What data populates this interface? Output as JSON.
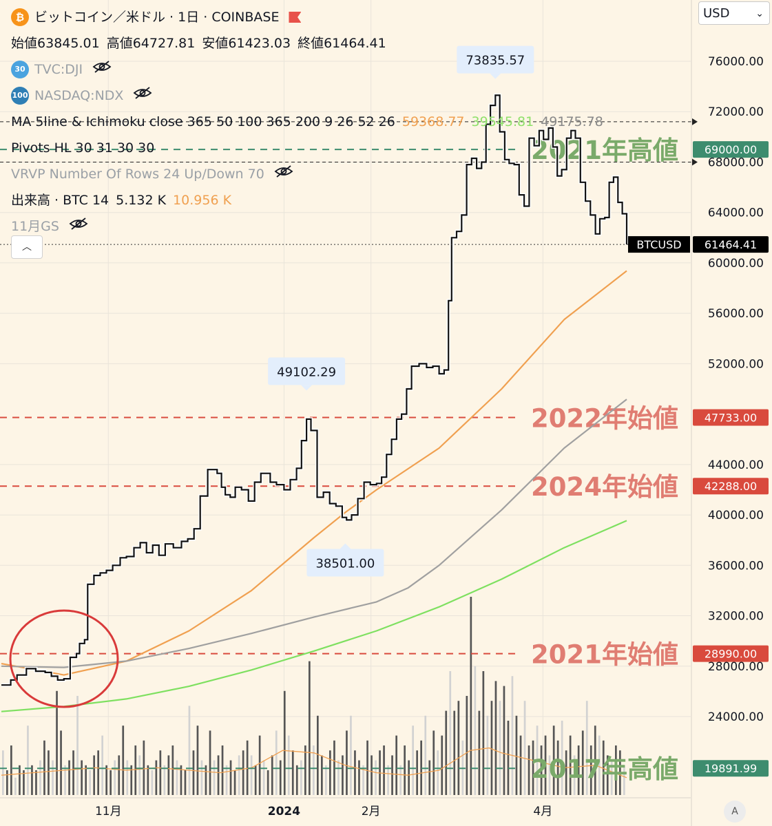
{
  "legend": {
    "title": "ビットコイン／米ドル · 1日 · COINBASE",
    "ohlc": {
      "o_label": "始値",
      "o_value": "63845.01",
      "h_label": "高値",
      "h_value": "64727.81",
      "l_label": "安値",
      "l_value": "61423.03",
      "c_label": "終値",
      "c_value": "61464.41"
    },
    "dji": {
      "badge": "30",
      "label": "TVC:DJI"
    },
    "ndx": {
      "badge": "100",
      "label": "NASDAQ:NDX"
    },
    "ma": {
      "label": "MA 5line & Ichimoku close 365 50 100 365 200 9 26 52 26",
      "v1": "59368.77",
      "v2": "39545.81",
      "v3": "49175.78"
    },
    "pivots": "Pivots HL 30 31 30 30",
    "vrvp": "VRVP Number Of Rows 24 Up/Down 70",
    "volume": {
      "label": "出来高 · BTC 14",
      "v1": "5.132 K",
      "v2": "10.956 K"
    },
    "gs": "11月GS"
  },
  "currency": "USD",
  "scale_button": "A",
  "colors": {
    "background": "#fdf5e6",
    "green_level": "#3d8c6e",
    "red_level": "#d94a3d",
    "green_label": "#7aaa6a",
    "red_label": "#e07d72",
    "ma_orange": "#f0a050",
    "ma_gray": "#a0a0a0",
    "ma_green": "#7ee060"
  },
  "chart_data": {
    "type": "line",
    "title": "ビットコイン／米ドル · 1日 · COINBASE",
    "y_axis": {
      "ylim": [
        18400,
        79000
      ],
      "ticks": [
        "76000.00",
        "72000.00",
        "68000.00",
        "64000.00",
        "60000.00",
        "56000.00",
        "52000.00",
        "44000.00",
        "40000.00",
        "36000.00",
        "32000.00",
        "28000.00",
        "24000.00"
      ]
    },
    "x_axis": {
      "ticks": [
        {
          "label": "11月",
          "t": 0.171
        },
        {
          "label": "2024",
          "t": 0.452
        },
        {
          "label": "2月",
          "t": 0.591
        },
        {
          "label": "4月",
          "t": 0.866
        }
      ]
    },
    "price_series": {
      "name": "BTCUSD",
      "points": [
        [
          0.0,
          26500
        ],
        [
          0.015,
          26900
        ],
        [
          0.025,
          27300
        ],
        [
          0.04,
          27800
        ],
        [
          0.055,
          27600
        ],
        [
          0.07,
          27500
        ],
        [
          0.08,
          27200
        ],
        [
          0.09,
          26900
        ],
        [
          0.1,
          27000
        ],
        [
          0.11,
          28700
        ],
        [
          0.12,
          29000
        ],
        [
          0.125,
          29800
        ],
        [
          0.133,
          30100
        ],
        [
          0.138,
          34500
        ],
        [
          0.148,
          35200
        ],
        [
          0.158,
          35400
        ],
        [
          0.168,
          35600
        ],
        [
          0.178,
          36000
        ],
        [
          0.19,
          36600
        ],
        [
          0.2,
          36700
        ],
        [
          0.212,
          37400
        ],
        [
          0.222,
          37800
        ],
        [
          0.232,
          37000
        ],
        [
          0.242,
          37600
        ],
        [
          0.252,
          36800
        ],
        [
          0.262,
          37700
        ],
        [
          0.275,
          37400
        ],
        [
          0.288,
          37900
        ],
        [
          0.298,
          38100
        ],
        [
          0.308,
          38900
        ],
        [
          0.318,
          41500
        ],
        [
          0.33,
          43600
        ],
        [
          0.345,
          43300
        ],
        [
          0.352,
          42200
        ],
        [
          0.358,
          41600
        ],
        [
          0.366,
          41400
        ],
        [
          0.374,
          42200
        ],
        [
          0.384,
          42000
        ],
        [
          0.395,
          41100
        ],
        [
          0.405,
          42600
        ],
        [
          0.415,
          43300
        ],
        [
          0.43,
          42600
        ],
        [
          0.44,
          42400
        ],
        [
          0.452,
          42000
        ],
        [
          0.462,
          42800
        ],
        [
          0.472,
          43700
        ],
        [
          0.48,
          45900
        ],
        [
          0.488,
          47600
        ],
        [
          0.495,
          46700
        ],
        [
          0.505,
          41400
        ],
        [
          0.515,
          41800
        ],
        [
          0.525,
          40900
        ],
        [
          0.535,
          40700
        ],
        [
          0.545,
          39800
        ],
        [
          0.552,
          39600
        ],
        [
          0.56,
          40000
        ],
        [
          0.57,
          41300
        ],
        [
          0.58,
          42600
        ],
        [
          0.59,
          42400
        ],
        [
          0.6,
          42500
        ],
        [
          0.608,
          43000
        ],
        [
          0.616,
          44800
        ],
        [
          0.624,
          46000
        ],
        [
          0.632,
          47600
        ],
        [
          0.64,
          48000
        ],
        [
          0.648,
          50000
        ],
        [
          0.656,
          51800
        ],
        [
          0.668,
          52000
        ],
        [
          0.68,
          51700
        ],
        [
          0.69,
          51800
        ],
        [
          0.7,
          51200
        ],
        [
          0.708,
          51500
        ],
        [
          0.715,
          57000
        ],
        [
          0.72,
          62000
        ],
        [
          0.728,
          62500
        ],
        [
          0.736,
          63800
        ],
        [
          0.744,
          67800
        ],
        [
          0.752,
          68300
        ],
        [
          0.76,
          67500
        ],
        [
          0.768,
          68000
        ],
        [
          0.775,
          71000
        ],
        [
          0.782,
          72500
        ],
        [
          0.79,
          73300
        ],
        [
          0.797,
          70400
        ],
        [
          0.805,
          68200
        ],
        [
          0.812,
          67900
        ],
        [
          0.82,
          67800
        ],
        [
          0.828,
          65400
        ],
        [
          0.836,
          64500
        ],
        [
          0.844,
          69900
        ],
        [
          0.852,
          69300
        ],
        [
          0.86,
          70500
        ],
        [
          0.867,
          69800
        ],
        [
          0.875,
          70700
        ],
        [
          0.882,
          69200
        ],
        [
          0.889,
          66900
        ],
        [
          0.896,
          67400
        ],
        [
          0.904,
          69900
        ],
        [
          0.911,
          70500
        ],
        [
          0.918,
          69900
        ],
        [
          0.926,
          66400
        ],
        [
          0.934,
          64900
        ],
        [
          0.942,
          63800
        ],
        [
          0.95,
          62300
        ],
        [
          0.957,
          63500
        ],
        [
          0.965,
          63600
        ],
        [
          0.972,
          66400
        ],
        [
          0.979,
          66800
        ],
        [
          0.986,
          64800
        ],
        [
          0.993,
          63900
        ],
        [
          1.0,
          61464
        ]
      ]
    },
    "ma_series": [
      {
        "name": "59368.77",
        "color": "#f0a050",
        "points": [
          [
            0,
            28200
          ],
          [
            0.1,
            27300
          ],
          [
            0.2,
            28400
          ],
          [
            0.3,
            30800
          ],
          [
            0.4,
            34000
          ],
          [
            0.5,
            38200
          ],
          [
            0.55,
            40200
          ],
          [
            0.6,
            42000
          ],
          [
            0.7,
            45300
          ],
          [
            0.8,
            50000
          ],
          [
            0.9,
            55500
          ],
          [
            1.0,
            59368
          ]
        ]
      },
      {
        "name": "",
        "color": "#a0a0a0",
        "points": [
          [
            0,
            28000
          ],
          [
            0.1,
            27900
          ],
          [
            0.2,
            28400
          ],
          [
            0.3,
            29400
          ],
          [
            0.4,
            30600
          ],
          [
            0.5,
            31900
          ],
          [
            0.6,
            33100
          ],
          [
            0.65,
            34200
          ],
          [
            0.7,
            36000
          ],
          [
            0.8,
            40400
          ],
          [
            0.9,
            45300
          ],
          [
            1.0,
            49175
          ]
        ]
      },
      {
        "name": "39545.81",
        "color": "#7ee060",
        "points": [
          [
            0,
            24400
          ],
          [
            0.1,
            24800
          ],
          [
            0.2,
            25400
          ],
          [
            0.3,
            26400
          ],
          [
            0.4,
            27700
          ],
          [
            0.5,
            29200
          ],
          [
            0.6,
            30800
          ],
          [
            0.7,
            32700
          ],
          [
            0.8,
            34900
          ],
          [
            0.9,
            37400
          ],
          [
            1.0,
            39545
          ]
        ]
      }
    ],
    "volume_heights": [
      0.9,
      0.5,
      1.0,
      0.35,
      0.6,
      0.5,
      1.4,
      0.6,
      0.5,
      0.7,
      1.1,
      0.9,
      0.7,
      2.1,
      1.3,
      0.6,
      0.7,
      0.9,
      2.0,
      0.7,
      0.6,
      0.5,
      0.8,
      0.9,
      1.2,
      0.6,
      0.5,
      0.7,
      0.8,
      1.4,
      0.7,
      0.6,
      1.0,
      0.8,
      1.1,
      0.6,
      0.5,
      0.7,
      0.9,
      0.6,
      0.8,
      1.0,
      0.7,
      0.6,
      0.5,
      1.8,
      0.9,
      1.4,
      0.7,
      0.6,
      1.3,
      0.7,
      0.8,
      1.0,
      0.6,
      0.7,
      0.5,
      0.8,
      0.9,
      1.1,
      0.8,
      0.6,
      1.2,
      0.7,
      0.5,
      0.8,
      1.3,
      0.7,
      2.1,
      1.2,
      0.9,
      0.6,
      0.7,
      1.0,
      2.7,
      1.0,
      1.6,
      0.8,
      0.6,
      0.9,
      1.1,
      0.7,
      0.8,
      1.3,
      1.6,
      0.9,
      0.7,
      0.6,
      1.1,
      0.8,
      0.7,
      0.9,
      1.0,
      0.6,
      0.8,
      1.2,
      0.6,
      1.0,
      0.7,
      1.4,
      0.9,
      1.1,
      1.6,
      0.7,
      1.3,
      0.9,
      1.2,
      1.7,
      2.5,
      1.7,
      1.9,
      1.1,
      2.0,
      4.0,
      2.6,
      1.7,
      2.5,
      1.6,
      1.9,
      2.3,
      1.9,
      2.2,
      1.5,
      2.4,
      1.6,
      1.2,
      1.9,
      1.0,
      1.1,
      1.4,
      1.0,
      1.2,
      0.8,
      1.4,
      1.1,
      1.5,
      0.9,
      1.2,
      0.8,
      1.0,
      1.3,
      1.9,
      1.0,
      1.4,
      1.2,
      1.1,
      0.8,
      0.7,
      1.0,
      0.9,
      0.6
    ],
    "volume_ma": [
      [
        0,
        0.4
      ],
      [
        0.05,
        0.45
      ],
      [
        0.1,
        0.5
      ],
      [
        0.15,
        0.55
      ],
      [
        0.2,
        0.5
      ],
      [
        0.25,
        0.55
      ],
      [
        0.3,
        0.5
      ],
      [
        0.35,
        0.45
      ],
      [
        0.4,
        0.55
      ],
      [
        0.45,
        0.9
      ],
      [
        0.5,
        0.85
      ],
      [
        0.55,
        0.6
      ],
      [
        0.6,
        0.45
      ],
      [
        0.65,
        0.4
      ],
      [
        0.7,
        0.5
      ],
      [
        0.75,
        0.9
      ],
      [
        0.78,
        0.95
      ],
      [
        0.8,
        0.85
      ],
      [
        0.85,
        0.7
      ],
      [
        0.9,
        0.55
      ],
      [
        0.95,
        0.6
      ],
      [
        1.0,
        0.35
      ]
    ],
    "levels": [
      {
        "price": 69000,
        "value": "69000.00",
        "label": "2021年高値",
        "kind": "green"
      },
      {
        "price": 47733,
        "value": "47733.00",
        "label": "2022年始値",
        "kind": "red"
      },
      {
        "price": 42288,
        "value": "42288.00",
        "label": "2024年始値",
        "kind": "red"
      },
      {
        "price": 28990,
        "value": "28990.00",
        "label": "2021年始値",
        "kind": "red"
      },
      {
        "price": 19891.99,
        "value": "19891.99",
        "label": "2017年高値",
        "kind": "green"
      }
    ],
    "pivot_lines": [
      71200,
      68000
    ],
    "current_price": {
      "price": 61464.41,
      "value": "61464.41",
      "symbol": "BTCUSD"
    },
    "callouts": [
      {
        "t": 0.79,
        "price": 73835.57,
        "value": "73835.57",
        "dir": "above"
      },
      {
        "t": 0.488,
        "price": 49102.29,
        "value": "49102.29",
        "dir": "above"
      },
      {
        "t": 0.55,
        "price": 38501.0,
        "value": "38501.00",
        "dir": "below"
      }
    ]
  }
}
